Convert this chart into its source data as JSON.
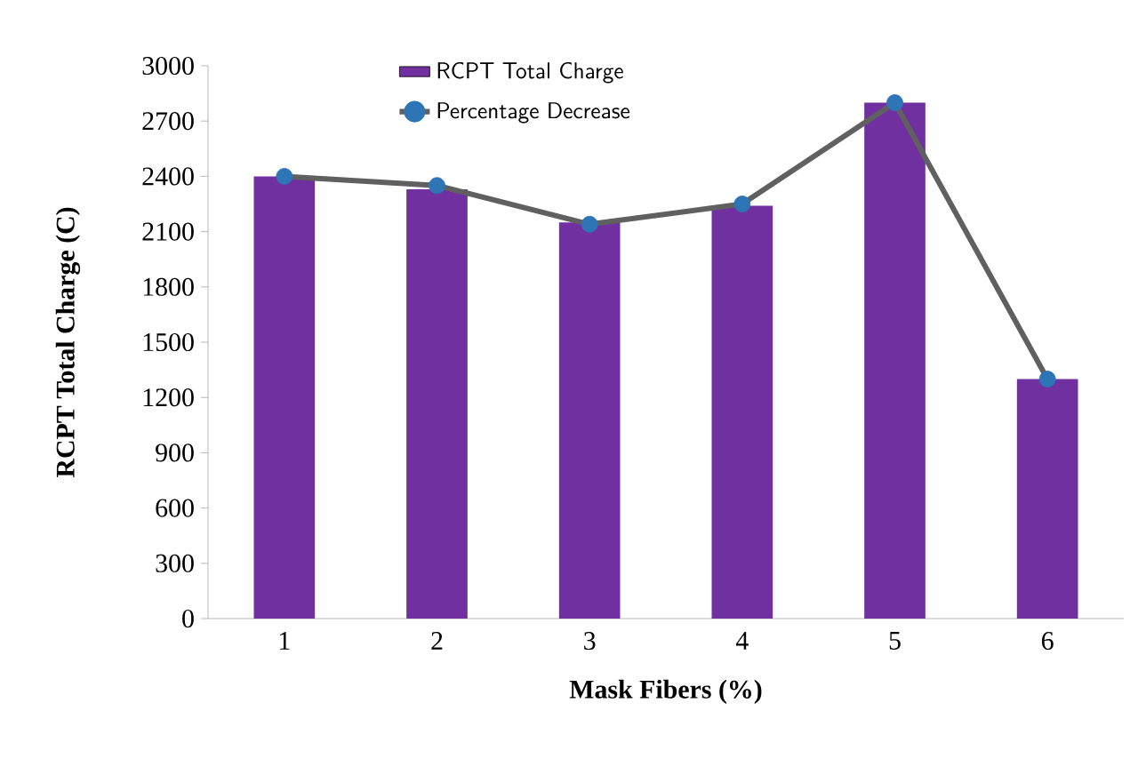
{
  "chart_data": {
    "type": "bar",
    "xlabel": "Mask Fibers (%)",
    "ylabel": "RCPT Total Charge (C)",
    "categories": [
      "1",
      "2",
      "3",
      "4",
      "5",
      "6"
    ],
    "series": [
      {
        "name": "RCPT Total Charge",
        "color": "#7030a0",
        "values": [
          2400,
          2330,
          2150,
          2240,
          2800,
          1300
        ]
      },
      {
        "name": "Percentage Decrease",
        "type": "line",
        "color": "#606060",
        "colors": [
          "#2e75b6",
          "#2e75b6",
          "#2e75b6",
          "#2e75b6",
          "#2e75b6",
          "#2e75b6"
        ],
        "marker": "circle",
        "values": [
          2400,
          2350,
          2140,
          2250,
          2800,
          1300
        ]
      }
    ],
    "ylim": [
      0,
      3000
    ],
    "yticks": [
      0,
      300,
      600,
      900,
      1200,
      1500,
      1800,
      2100,
      2400,
      2700,
      3000
    ],
    "legend": "top",
    "grid": false
  }
}
